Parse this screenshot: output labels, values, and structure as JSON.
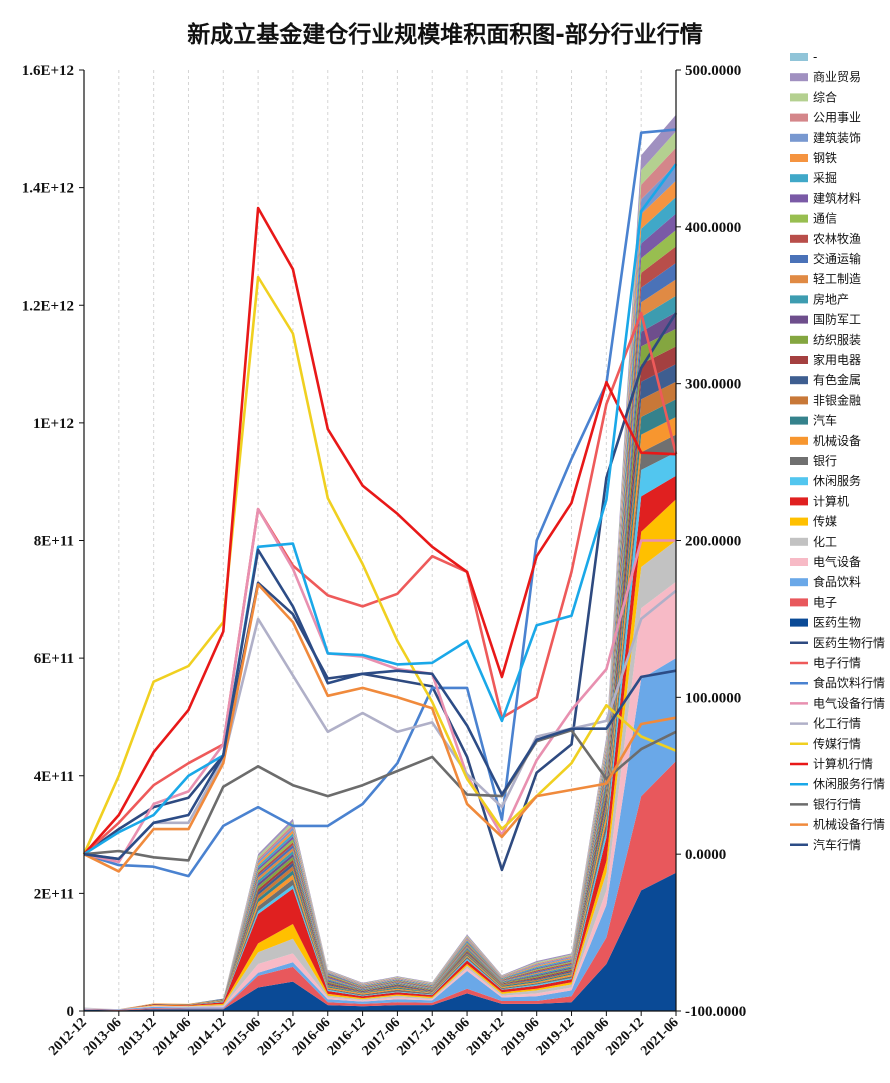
{
  "chart_data": {
    "type": "area",
    "title": "新成立基金建仓行业规模堆积面积图-部分行业行情",
    "categories": [
      "2012-12",
      "2013-06",
      "2013-12",
      "2014-06",
      "2014-12",
      "2015-06",
      "2015-12",
      "2016-06",
      "2016-12",
      "2017-06",
      "2017-12",
      "2018-06",
      "2018-12",
      "2019-06",
      "2019-12",
      "2020-06",
      "2020-12",
      "2021-06"
    ],
    "y_left": {
      "min": 0,
      "max": 1600000000000.0,
      "step": 200000000000.0,
      "tick_labels": [
        "0",
        "2E+11",
        "4E+11",
        "6E+11",
        "8E+11",
        "1E+12",
        "1.2E+12",
        "1.4E+12",
        "1.6E+12"
      ]
    },
    "y_right": {
      "min": -100,
      "max": 500,
      "step": 100,
      "tick_labels": [
        "-100.0000",
        "0.0000",
        "100.0000",
        "200.0000",
        "300.0000",
        "400.0000",
        "500.0000"
      ]
    },
    "stacked_series": [
      {
        "name": "医药生物",
        "color": "#0a4a96",
        "values": [
          0.02,
          0.01,
          0.03,
          0.03,
          0.03,
          0.4,
          0.5,
          0.1,
          0.08,
          0.1,
          0.1,
          0.3,
          0.12,
          0.12,
          0.15,
          0.8,
          2.05,
          2.35
        ]
      },
      {
        "name": "电子",
        "color": "#e8585c",
        "values": [
          0.01,
          0.01,
          0.02,
          0.01,
          0.01,
          0.2,
          0.25,
          0.05,
          0.04,
          0.05,
          0.04,
          0.08,
          0.05,
          0.05,
          0.1,
          0.45,
          1.6,
          1.9
        ]
      },
      {
        "name": "食品饮料",
        "color": "#6aa8e8",
        "values": [
          0.01,
          0.01,
          0.02,
          0.02,
          0.02,
          0.05,
          0.08,
          0.05,
          0.04,
          0.05,
          0.04,
          0.3,
          0.06,
          0.08,
          0.1,
          0.55,
          2.0,
          1.75
        ]
      },
      {
        "name": "电气设备",
        "color": "#f7bac6",
        "values": [
          0.01,
          0.0,
          0.01,
          0.01,
          0.02,
          0.15,
          0.15,
          0.03,
          0.02,
          0.03,
          0.02,
          0.05,
          0.03,
          0.05,
          0.05,
          0.25,
          1.2,
          1.3
        ]
      },
      {
        "name": "化工",
        "color": "#c2c2c2",
        "values": [
          0.01,
          0.0,
          0.01,
          0.01,
          0.02,
          0.2,
          0.25,
          0.03,
          0.02,
          0.03,
          0.02,
          0.04,
          0.03,
          0.05,
          0.05,
          0.3,
          0.7,
          0.7
        ]
      },
      {
        "name": "传媒",
        "color": "#ffc000",
        "values": [
          0.0,
          0.0,
          0.01,
          0.01,
          0.02,
          0.15,
          0.25,
          0.03,
          0.02,
          0.02,
          0.02,
          0.03,
          0.03,
          0.03,
          0.04,
          0.2,
          0.6,
          0.7
        ]
      },
      {
        "name": "计算机",
        "color": "#e02020",
        "values": [
          0.0,
          0.0,
          0.01,
          0.01,
          0.03,
          0.5,
          0.6,
          0.05,
          0.03,
          0.04,
          0.03,
          0.06,
          0.04,
          0.05,
          0.05,
          0.4,
          0.6,
          0.4
        ]
      },
      {
        "name": "休闲服务",
        "color": "#52c6ef",
        "values": [
          0.0,
          0.0,
          0.0,
          0.0,
          0.01,
          0.05,
          0.06,
          0.02,
          0.01,
          0.01,
          0.01,
          0.03,
          0.01,
          0.02,
          0.02,
          0.12,
          0.45,
          0.4
        ]
      },
      {
        "name": "银行",
        "color": "#707070",
        "values": [
          0.0,
          0.0,
          0.01,
          0.01,
          0.01,
          0.08,
          0.1,
          0.02,
          0.02,
          0.03,
          0.02,
          0.03,
          0.02,
          0.02,
          0.03,
          0.15,
          0.3,
          0.3
        ]
      },
      {
        "name": "机械设备",
        "color": "#f7962f",
        "values": [
          0.0,
          0.0,
          0.01,
          0.01,
          0.01,
          0.07,
          0.08,
          0.02,
          0.02,
          0.02,
          0.01,
          0.02,
          0.02,
          0.02,
          0.03,
          0.12,
          0.3,
          0.3
        ]
      },
      {
        "name": "汽车",
        "color": "#35828c",
        "values": [
          0.0,
          0.0,
          0.0,
          0.0,
          0.01,
          0.06,
          0.07,
          0.02,
          0.01,
          0.02,
          0.01,
          0.02,
          0.02,
          0.02,
          0.02,
          0.1,
          0.3,
          0.3
        ]
      },
      {
        "name": "非银金融",
        "color": "#c87838",
        "values": [
          0.0,
          0.0,
          0.0,
          0.0,
          0.01,
          0.06,
          0.07,
          0.02,
          0.01,
          0.02,
          0.01,
          0.02,
          0.02,
          0.02,
          0.02,
          0.1,
          0.3,
          0.3
        ]
      },
      {
        "name": "有色金属",
        "color": "#3e5e90",
        "values": [
          0.0,
          0.0,
          0.0,
          0.0,
          0.01,
          0.05,
          0.06,
          0.02,
          0.01,
          0.02,
          0.01,
          0.02,
          0.01,
          0.02,
          0.02,
          0.1,
          0.3,
          0.3
        ]
      },
      {
        "name": "家用电器",
        "color": "#a44040",
        "values": [
          0.0,
          0.0,
          0.0,
          0.0,
          0.0,
          0.05,
          0.05,
          0.02,
          0.01,
          0.01,
          0.01,
          0.02,
          0.01,
          0.02,
          0.02,
          0.08,
          0.3,
          0.3
        ]
      },
      {
        "name": "纺织服装",
        "color": "#84a640",
        "values": [
          0.0,
          0.0,
          0.0,
          0.0,
          0.0,
          0.05,
          0.05,
          0.02,
          0.01,
          0.01,
          0.01,
          0.02,
          0.01,
          0.02,
          0.02,
          0.08,
          0.3,
          0.3
        ]
      },
      {
        "name": "国防军工",
        "color": "#6e4e8c",
        "values": [
          0.0,
          0.0,
          0.0,
          0.0,
          0.0,
          0.05,
          0.05,
          0.02,
          0.01,
          0.01,
          0.01,
          0.02,
          0.01,
          0.02,
          0.02,
          0.08,
          0.25,
          0.28
        ]
      },
      {
        "name": "房地产",
        "color": "#3d9cb0",
        "values": [
          0.0,
          0.0,
          0.0,
          0.0,
          0.0,
          0.05,
          0.05,
          0.02,
          0.01,
          0.01,
          0.01,
          0.02,
          0.01,
          0.02,
          0.02,
          0.08,
          0.25,
          0.28
        ]
      },
      {
        "name": "轻工制造",
        "color": "#e08a44",
        "values": [
          0.0,
          0.0,
          0.0,
          0.0,
          0.0,
          0.05,
          0.05,
          0.02,
          0.01,
          0.01,
          0.01,
          0.02,
          0.01,
          0.02,
          0.02,
          0.08,
          0.25,
          0.28
        ]
      },
      {
        "name": "交通运输",
        "color": "#4a72b8",
        "values": [
          0.0,
          0.0,
          0.0,
          0.0,
          0.0,
          0.04,
          0.05,
          0.02,
          0.01,
          0.01,
          0.01,
          0.02,
          0.01,
          0.02,
          0.02,
          0.07,
          0.25,
          0.28
        ]
      },
      {
        "name": "农林牧渔",
        "color": "#b84e4a",
        "values": [
          0.0,
          0.0,
          0.0,
          0.0,
          0.0,
          0.04,
          0.05,
          0.02,
          0.01,
          0.01,
          0.01,
          0.02,
          0.01,
          0.02,
          0.02,
          0.07,
          0.25,
          0.28
        ]
      },
      {
        "name": "通信",
        "color": "#98be50",
        "values": [
          0.0,
          0.0,
          0.0,
          0.0,
          0.0,
          0.04,
          0.05,
          0.02,
          0.01,
          0.01,
          0.01,
          0.02,
          0.01,
          0.02,
          0.02,
          0.07,
          0.25,
          0.28
        ]
      },
      {
        "name": "建筑材料",
        "color": "#7a5aa6",
        "values": [
          0.0,
          0.0,
          0.0,
          0.0,
          0.0,
          0.04,
          0.05,
          0.02,
          0.01,
          0.01,
          0.01,
          0.02,
          0.01,
          0.02,
          0.02,
          0.06,
          0.25,
          0.28
        ]
      },
      {
        "name": "采掘",
        "color": "#40a8c8",
        "values": [
          0.0,
          0.0,
          0.0,
          0.0,
          0.0,
          0.04,
          0.05,
          0.01,
          0.01,
          0.01,
          0.01,
          0.02,
          0.01,
          0.02,
          0.02,
          0.06,
          0.25,
          0.28
        ]
      },
      {
        "name": "钢铁",
        "color": "#f59440",
        "values": [
          0.0,
          0.0,
          0.0,
          0.0,
          0.0,
          0.04,
          0.05,
          0.01,
          0.01,
          0.01,
          0.01,
          0.02,
          0.01,
          0.02,
          0.02,
          0.06,
          0.25,
          0.28
        ]
      },
      {
        "name": "建筑装饰",
        "color": "#7898d0",
        "values": [
          0.0,
          0.0,
          0.0,
          0.0,
          0.0,
          0.04,
          0.05,
          0.01,
          0.01,
          0.01,
          0.01,
          0.02,
          0.01,
          0.02,
          0.02,
          0.06,
          0.25,
          0.28
        ]
      },
      {
        "name": "公用事业",
        "color": "#d4868a",
        "values": [
          0.0,
          0.0,
          0.0,
          0.0,
          0.0,
          0.04,
          0.05,
          0.01,
          0.01,
          0.01,
          0.01,
          0.02,
          0.01,
          0.02,
          0.02,
          0.06,
          0.25,
          0.28
        ]
      },
      {
        "name": "综合",
        "color": "#b4d090",
        "values": [
          0.0,
          0.0,
          0.0,
          0.0,
          0.0,
          0.04,
          0.05,
          0.01,
          0.01,
          0.01,
          0.01,
          0.02,
          0.01,
          0.02,
          0.02,
          0.06,
          0.25,
          0.28
        ]
      },
      {
        "name": "商业贸易",
        "color": "#a090c0",
        "values": [
          0.0,
          0.0,
          0.0,
          0.0,
          0.0,
          0.04,
          0.05,
          0.01,
          0.01,
          0.01,
          0.01,
          0.02,
          0.01,
          0.02,
          0.02,
          0.06,
          0.25,
          0.28
        ]
      },
      {
        "name": "-",
        "color": "#90c4d8",
        "values": [
          0.0,
          0.0,
          0.0,
          0.0,
          0.0,
          0.0,
          0.0,
          0.0,
          0.0,
          0.0,
          0.0,
          0.0,
          0.0,
          0.0,
          0.0,
          0.0,
          0.0,
          0.0
        ]
      }
    ],
    "stacked_values_unit": "1e11",
    "line_series": [
      {
        "name": "医药生物行情",
        "color": "#2e4a80",
        "values": [
          0,
          16,
          30,
          36,
          63,
          173,
          153,
          112,
          115,
          111,
          107,
          62,
          -10,
          52,
          70,
          240,
          310,
          345
        ]
      },
      {
        "name": "电子行情",
        "color": "#ee5a5a",
        "values": [
          0,
          20,
          44,
          58,
          70,
          220,
          184,
          165,
          158,
          166,
          190,
          180,
          87,
          100,
          180,
          287,
          345,
          255
        ]
      },
      {
        "name": "食品饮料行情",
        "color": "#4a82d0",
        "values": [
          0,
          -7,
          -8,
          -14,
          18,
          30,
          18,
          18,
          32,
          58,
          106,
          106,
          22,
          200,
          252,
          300,
          460,
          462
        ]
      },
      {
        "name": "电气设备行情",
        "color": "#e890b0",
        "values": [
          0,
          -5,
          32,
          40,
          70,
          220,
          182,
          128,
          126,
          118,
          115,
          50,
          12,
          60,
          92,
          118,
          200,
          200
        ]
      },
      {
        "name": "化工行情",
        "color": "#b0b0c8",
        "values": [
          0,
          -3,
          20,
          20,
          60,
          150,
          114,
          78,
          90,
          78,
          84,
          51,
          30,
          75,
          80,
          85,
          150,
          168
        ]
      },
      {
        "name": "传媒行情",
        "color": "#f0d020",
        "values": [
          0,
          50,
          110,
          120,
          148,
          368,
          332,
          227,
          185,
          136,
          97,
          48,
          16,
          37,
          58,
          95,
          75,
          66
        ]
      },
      {
        "name": "计算机行情",
        "color": "#e81818",
        "values": [
          0,
          25,
          65,
          92,
          142,
          412,
          373,
          271,
          235,
          217,
          196,
          180,
          113,
          190,
          224,
          301,
          256,
          255
        ]
      },
      {
        "name": "休闲服务行情",
        "color": "#1aa8e8",
        "values": [
          0,
          14,
          25,
          50,
          63,
          196,
          198,
          128,
          127,
          121,
          122,
          136,
          85,
          146,
          152,
          226,
          410,
          440
        ]
      },
      {
        "name": "银行行情",
        "color": "#6c6c6c",
        "values": [
          0,
          2,
          -2,
          -4,
          43,
          56,
          44,
          37,
          44,
          53,
          62,
          38,
          37,
          72,
          79,
          48,
          67,
          78
        ]
      },
      {
        "name": "机械设备行情",
        "color": "#f08a3c",
        "values": [
          0,
          -11,
          16,
          16,
          58,
          172,
          148,
          101,
          106,
          100,
          93,
          32,
          11,
          37,
          41,
          45,
          83,
          87
        ]
      },
      {
        "name": "汽车行情",
        "color": "#2c4c86",
        "values": [
          0,
          -3,
          20,
          25,
          63,
          194,
          158,
          109,
          115,
          117,
          115,
          82,
          38,
          73,
          80,
          80,
          113,
          117
        ]
      }
    ]
  }
}
